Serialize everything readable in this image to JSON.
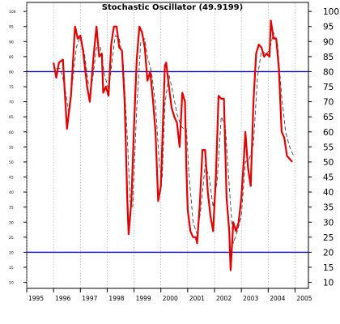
{
  "chart_data": {
    "type": "line",
    "title": "Stochastic Oscillator (49.9199)",
    "xlabel": "",
    "ylabel": "",
    "xlim": [
      1995.0,
      2005.5
    ],
    "ylim": [
      8,
      103
    ],
    "x_ticks": [
      1995,
      1996,
      1997,
      1998,
      1999,
      2000,
      2001,
      2002,
      2003,
      2004,
      2005
    ],
    "x_tick_labels": [
      "1995",
      "1996",
      "1997",
      "1998",
      "1999",
      "2000",
      "2001",
      "2002",
      "2003",
      "2004",
      "2005"
    ],
    "y_ticks": [
      10,
      15,
      20,
      25,
      30,
      35,
      40,
      45,
      50,
      55,
      60,
      65,
      70,
      75,
      80,
      85,
      90,
      95,
      100
    ],
    "y_tick_labels": [
      "10",
      "15",
      "20",
      "25",
      "30",
      "35",
      "40",
      "45",
      "50",
      "55",
      "60",
      "65",
      "70",
      "75",
      "80",
      "85",
      "90",
      "95",
      "100"
    ],
    "grid": "vertical dashed lines at each year",
    "reference_lines": [
      {
        "y": 80,
        "color": "#0000cc"
      },
      {
        "y": 20,
        "color": "#0000cc"
      }
    ],
    "series": [
      {
        "style": "solid",
        "color": "#e60000",
        "points": [
          [
            1996.0,
            83
          ],
          [
            1996.1,
            78
          ],
          [
            1996.2,
            83
          ],
          [
            1996.35,
            84
          ],
          [
            1996.5,
            61
          ],
          [
            1996.65,
            72
          ],
          [
            1996.8,
            95
          ],
          [
            1996.9,
            91
          ],
          [
            1997.0,
            92
          ],
          [
            1997.1,
            87
          ],
          [
            1997.25,
            75
          ],
          [
            1997.35,
            70
          ],
          [
            1997.5,
            86
          ],
          [
            1997.6,
            95
          ],
          [
            1997.7,
            85
          ],
          [
            1997.8,
            86
          ],
          [
            1997.85,
            73
          ],
          [
            1997.95,
            75
          ],
          [
            1998.05,
            72
          ],
          [
            1998.15,
            89
          ],
          [
            1998.25,
            95
          ],
          [
            1998.35,
            95
          ],
          [
            1998.45,
            88
          ],
          [
            1998.55,
            87
          ],
          [
            1998.65,
            70
          ],
          [
            1998.75,
            37
          ],
          [
            1998.8,
            26
          ],
          [
            1998.9,
            37
          ],
          [
            1999.0,
            62
          ],
          [
            1999.1,
            84
          ],
          [
            1999.2,
            95
          ],
          [
            1999.3,
            93
          ],
          [
            1999.4,
            88
          ],
          [
            1999.5,
            77
          ],
          [
            1999.6,
            80
          ],
          [
            1999.7,
            71
          ],
          [
            1999.8,
            60
          ],
          [
            1999.9,
            37
          ],
          [
            2000.0,
            42
          ],
          [
            2000.15,
            82
          ],
          [
            2000.2,
            83
          ],
          [
            2000.3,
            75
          ],
          [
            2000.4,
            68
          ],
          [
            2000.5,
            65
          ],
          [
            2000.6,
            63
          ],
          [
            2000.7,
            55
          ],
          [
            2000.8,
            73
          ],
          [
            2000.9,
            70
          ],
          [
            2000.95,
            48
          ],
          [
            2001.0,
            34
          ],
          [
            2001.1,
            27
          ],
          [
            2001.2,
            25
          ],
          [
            2001.3,
            25
          ],
          [
            2001.35,
            23
          ],
          [
            2001.45,
            36
          ],
          [
            2001.55,
            54
          ],
          [
            2001.65,
            54
          ],
          [
            2001.75,
            40
          ],
          [
            2001.85,
            32
          ],
          [
            2001.95,
            27
          ],
          [
            2002.05,
            45
          ],
          [
            2002.15,
            72
          ],
          [
            2002.25,
            71
          ],
          [
            2002.35,
            71
          ],
          [
            2002.45,
            38
          ],
          [
            2002.55,
            27
          ],
          [
            2002.6,
            14
          ],
          [
            2002.7,
            30
          ],
          [
            2002.8,
            27
          ],
          [
            2002.9,
            30
          ],
          [
            2003.0,
            38
          ],
          [
            2003.1,
            52
          ],
          [
            2003.15,
            60
          ],
          [
            2003.25,
            48
          ],
          [
            2003.35,
            42
          ],
          [
            2003.45,
            70
          ],
          [
            2003.55,
            86
          ],
          [
            2003.65,
            89
          ],
          [
            2003.75,
            88
          ],
          [
            2003.85,
            85
          ],
          [
            2003.95,
            86
          ],
          [
            2004.05,
            85
          ],
          [
            2004.1,
            97
          ],
          [
            2004.2,
            91
          ],
          [
            2004.3,
            91
          ],
          [
            2004.4,
            81
          ],
          [
            2004.5,
            60
          ],
          [
            2004.6,
            58
          ],
          [
            2004.7,
            52
          ],
          [
            2004.8,
            51
          ],
          [
            2004.9,
            50
          ]
        ]
      },
      {
        "style": "dashed",
        "color": "#444444",
        "points": [
          [
            1996.1,
            81
          ],
          [
            1996.25,
            81
          ],
          [
            1996.4,
            76
          ],
          [
            1996.55,
            67
          ],
          [
            1996.7,
            76
          ],
          [
            1996.85,
            88
          ],
          [
            1997.0,
            92
          ],
          [
            1997.15,
            86
          ],
          [
            1997.3,
            76
          ],
          [
            1997.45,
            77
          ],
          [
            1997.6,
            88
          ],
          [
            1997.75,
            88
          ],
          [
            1997.9,
            79
          ],
          [
            1998.05,
            74
          ],
          [
            1998.15,
            81
          ],
          [
            1998.3,
            92
          ],
          [
            1998.45,
            91
          ],
          [
            1998.6,
            83
          ],
          [
            1998.75,
            58
          ],
          [
            1998.85,
            37
          ],
          [
            1998.95,
            35
          ],
          [
            1999.1,
            68
          ],
          [
            1999.25,
            90
          ],
          [
            1999.4,
            91
          ],
          [
            1999.5,
            85
          ],
          [
            1999.65,
            80
          ],
          [
            1999.8,
            69
          ],
          [
            1999.95,
            48
          ],
          [
            2000.05,
            45
          ],
          [
            2000.15,
            69
          ],
          [
            2000.3,
            79
          ],
          [
            2000.45,
            73
          ],
          [
            2000.6,
            66
          ],
          [
            2000.75,
            62
          ],
          [
            2000.85,
            61
          ],
          [
            2000.95,
            61
          ],
          [
            2001.05,
            46
          ],
          [
            2001.2,
            30
          ],
          [
            2001.35,
            26
          ],
          [
            2001.5,
            35
          ],
          [
            2001.65,
            49
          ],
          [
            2001.8,
            45
          ],
          [
            2001.95,
            35
          ],
          [
            2002.1,
            44
          ],
          [
            2002.25,
            65
          ],
          [
            2002.4,
            62
          ],
          [
            2002.55,
            42
          ],
          [
            2002.7,
            23
          ],
          [
            2002.85,
            27
          ],
          [
            2003.0,
            32
          ],
          [
            2003.15,
            50
          ],
          [
            2003.3,
            51
          ],
          [
            2003.45,
            56
          ],
          [
            2003.6,
            78
          ],
          [
            2003.75,
            87
          ],
          [
            2003.9,
            86
          ],
          [
            2004.05,
            87
          ],
          [
            2004.2,
            93
          ],
          [
            2004.35,
            89
          ],
          [
            2004.5,
            72
          ],
          [
            2004.65,
            60
          ],
          [
            2004.8,
            55
          ],
          [
            2004.95,
            52
          ]
        ]
      }
    ]
  }
}
